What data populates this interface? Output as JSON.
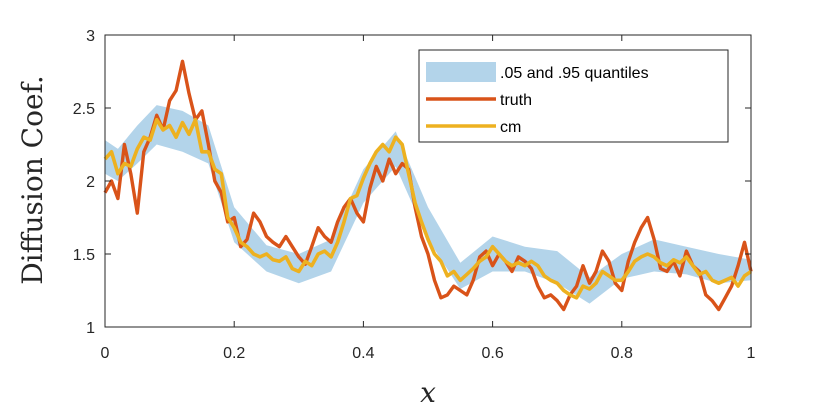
{
  "chart_data": {
    "type": "line",
    "xlabel": "x",
    "ylabel": "Diffusion Coef.",
    "xlim": [
      0,
      1
    ],
    "ylim": [
      1,
      3
    ],
    "xticks": [
      "0",
      "0.2",
      "0.4",
      "0.6",
      "0.8",
      "1"
    ],
    "yticks": [
      "1",
      "1.5",
      "2",
      "2.5",
      "3"
    ],
    "legend_position": "top-right",
    "band": {
      "name": ".05 and .95 quantiles",
      "color": "#b3d4ea",
      "x": [
        0,
        0.02,
        0.05,
        0.08,
        0.12,
        0.16,
        0.2,
        0.25,
        0.3,
        0.35,
        0.4,
        0.45,
        0.5,
        0.55,
        0.6,
        0.65,
        0.7,
        0.75,
        0.8,
        0.85,
        0.9,
        0.95,
        1
      ],
      "lower": [
        2.05,
        2.0,
        2.12,
        2.25,
        2.2,
        2.12,
        1.58,
        1.38,
        1.3,
        1.38,
        1.85,
        2.1,
        1.6,
        1.26,
        1.38,
        1.38,
        1.3,
        1.16,
        1.33,
        1.38,
        1.36,
        1.3,
        1.32
      ],
      "upper": [
        2.28,
        2.22,
        2.38,
        2.52,
        2.48,
        2.38,
        1.82,
        1.56,
        1.5,
        1.6,
        2.08,
        2.34,
        1.82,
        1.44,
        1.62,
        1.55,
        1.52,
        1.34,
        1.5,
        1.6,
        1.55,
        1.5,
        1.46
      ]
    },
    "series": [
      {
        "name": "truth",
        "color": "#d95319",
        "x": [
          0,
          0.01,
          0.02,
          0.03,
          0.04,
          0.05,
          0.06,
          0.07,
          0.08,
          0.09,
          0.1,
          0.11,
          0.12,
          0.13,
          0.14,
          0.15,
          0.16,
          0.17,
          0.18,
          0.19,
          0.2,
          0.21,
          0.22,
          0.23,
          0.24,
          0.25,
          0.26,
          0.27,
          0.28,
          0.29,
          0.3,
          0.31,
          0.32,
          0.33,
          0.34,
          0.35,
          0.36,
          0.37,
          0.38,
          0.39,
          0.4,
          0.41,
          0.42,
          0.43,
          0.44,
          0.45,
          0.46,
          0.47,
          0.48,
          0.49,
          0.5,
          0.51,
          0.52,
          0.53,
          0.54,
          0.55,
          0.56,
          0.57,
          0.58,
          0.59,
          0.6,
          0.61,
          0.62,
          0.63,
          0.64,
          0.65,
          0.66,
          0.67,
          0.68,
          0.69,
          0.7,
          0.71,
          0.72,
          0.73,
          0.74,
          0.75,
          0.76,
          0.77,
          0.78,
          0.79,
          0.8,
          0.81,
          0.82,
          0.83,
          0.84,
          0.85,
          0.86,
          0.87,
          0.88,
          0.89,
          0.9,
          0.91,
          0.92,
          0.93,
          0.94,
          0.95,
          0.96,
          0.97,
          0.98,
          0.99,
          1.0
        ],
        "values": [
          1.92,
          2.0,
          1.88,
          2.25,
          2.05,
          1.78,
          2.2,
          2.3,
          2.45,
          2.35,
          2.55,
          2.62,
          2.82,
          2.6,
          2.42,
          2.48,
          2.25,
          2.0,
          1.92,
          1.72,
          1.75,
          1.55,
          1.6,
          1.78,
          1.72,
          1.62,
          1.58,
          1.55,
          1.62,
          1.55,
          1.48,
          1.43,
          1.55,
          1.68,
          1.62,
          1.58,
          1.72,
          1.82,
          1.88,
          1.78,
          1.72,
          1.95,
          2.1,
          2.0,
          2.15,
          2.05,
          2.12,
          2.08,
          1.82,
          1.62,
          1.5,
          1.32,
          1.2,
          1.22,
          1.28,
          1.25,
          1.22,
          1.32,
          1.48,
          1.52,
          1.42,
          1.5,
          1.45,
          1.38,
          1.48,
          1.45,
          1.4,
          1.28,
          1.2,
          1.22,
          1.18,
          1.12,
          1.22,
          1.28,
          1.42,
          1.3,
          1.38,
          1.52,
          1.45,
          1.3,
          1.25,
          1.45,
          1.58,
          1.68,
          1.75,
          1.6,
          1.4,
          1.38,
          1.45,
          1.35,
          1.52,
          1.42,
          1.38,
          1.22,
          1.18,
          1.12,
          1.2,
          1.28,
          1.42,
          1.58,
          1.38
        ]
      },
      {
        "name": "cm",
        "color": "#edb120",
        "x": [
          0,
          0.01,
          0.02,
          0.03,
          0.04,
          0.05,
          0.06,
          0.07,
          0.08,
          0.09,
          0.1,
          0.11,
          0.12,
          0.13,
          0.14,
          0.15,
          0.16,
          0.17,
          0.18,
          0.19,
          0.2,
          0.21,
          0.22,
          0.23,
          0.24,
          0.25,
          0.26,
          0.27,
          0.28,
          0.29,
          0.3,
          0.31,
          0.32,
          0.33,
          0.34,
          0.35,
          0.36,
          0.37,
          0.38,
          0.39,
          0.4,
          0.41,
          0.42,
          0.43,
          0.44,
          0.45,
          0.46,
          0.47,
          0.48,
          0.49,
          0.5,
          0.51,
          0.52,
          0.53,
          0.54,
          0.55,
          0.56,
          0.57,
          0.58,
          0.59,
          0.6,
          0.61,
          0.62,
          0.63,
          0.64,
          0.65,
          0.66,
          0.67,
          0.68,
          0.69,
          0.7,
          0.71,
          0.72,
          0.73,
          0.74,
          0.75,
          0.76,
          0.77,
          0.78,
          0.79,
          0.8,
          0.81,
          0.82,
          0.83,
          0.84,
          0.85,
          0.86,
          0.87,
          0.88,
          0.89,
          0.9,
          0.91,
          0.92,
          0.93,
          0.94,
          0.95,
          0.96,
          0.97,
          0.98,
          0.99,
          1.0
        ],
        "values": [
          2.15,
          2.2,
          2.05,
          2.12,
          2.1,
          2.22,
          2.3,
          2.28,
          2.42,
          2.35,
          2.38,
          2.3,
          2.4,
          2.32,
          2.42,
          2.2,
          2.2,
          2.08,
          2.05,
          1.75,
          1.68,
          1.58,
          1.55,
          1.5,
          1.48,
          1.5,
          1.46,
          1.45,
          1.48,
          1.4,
          1.38,
          1.45,
          1.42,
          1.5,
          1.52,
          1.48,
          1.58,
          1.72,
          1.88,
          1.9,
          2.02,
          2.12,
          2.2,
          2.25,
          2.2,
          2.3,
          2.25,
          2.05,
          1.85,
          1.72,
          1.6,
          1.5,
          1.45,
          1.35,
          1.38,
          1.32,
          1.36,
          1.4,
          1.45,
          1.48,
          1.55,
          1.5,
          1.45,
          1.42,
          1.44,
          1.42,
          1.45,
          1.42,
          1.35,
          1.32,
          1.3,
          1.25,
          1.22,
          1.2,
          1.28,
          1.26,
          1.3,
          1.38,
          1.35,
          1.32,
          1.32,
          1.38,
          1.45,
          1.48,
          1.5,
          1.48,
          1.44,
          1.42,
          1.46,
          1.44,
          1.48,
          1.42,
          1.36,
          1.38,
          1.32,
          1.3,
          1.32,
          1.34,
          1.28,
          1.35,
          1.38
        ]
      }
    ]
  }
}
